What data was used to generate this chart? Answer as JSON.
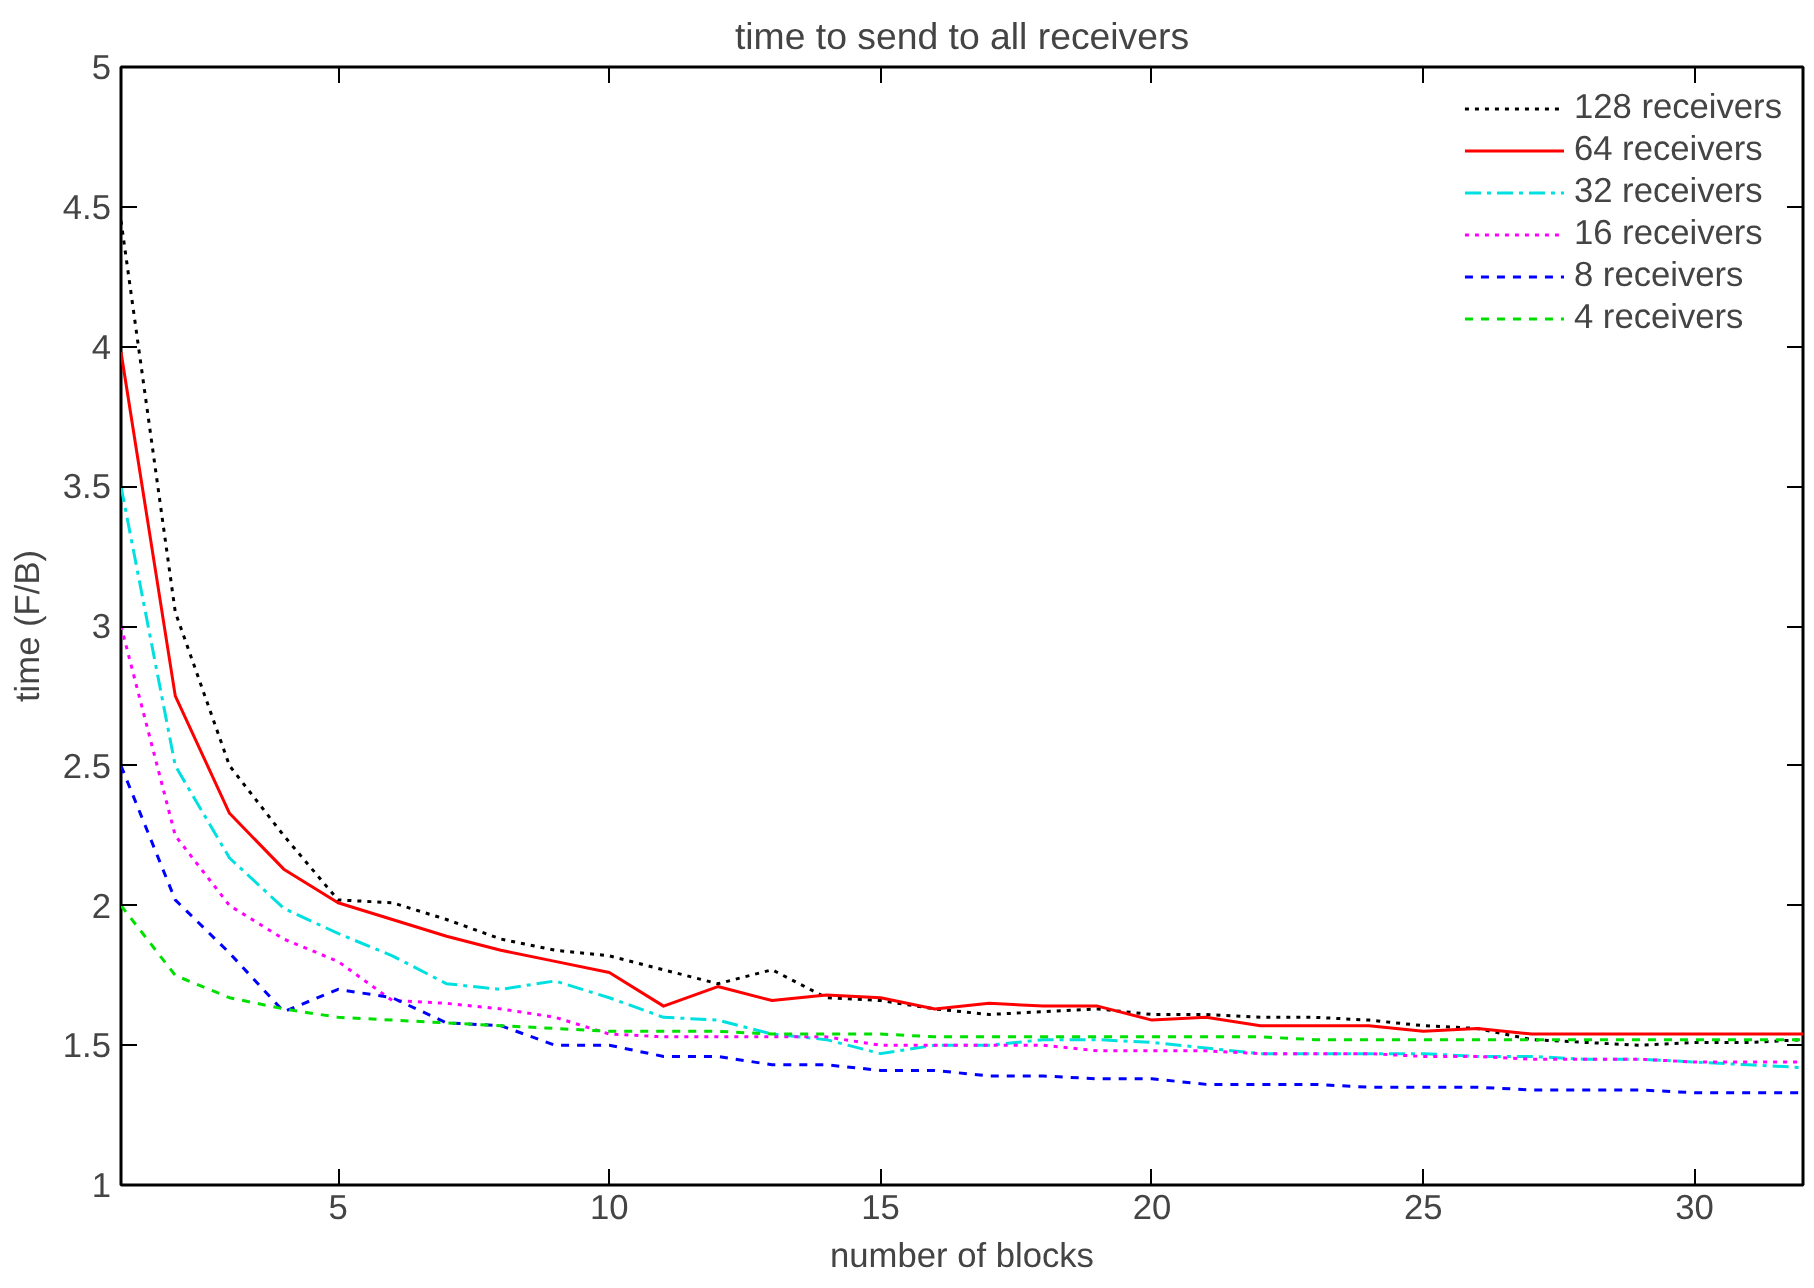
{
  "chart_data": {
    "type": "line",
    "title": "time to send to all receivers",
    "xlabel": "number of blocks",
    "ylabel": "time (F/B)",
    "x": [
      1,
      2,
      3,
      4,
      5,
      6,
      7,
      8,
      9,
      10,
      11,
      12,
      13,
      14,
      15,
      16,
      17,
      18,
      19,
      20,
      21,
      22,
      23,
      24,
      25,
      26,
      27,
      28,
      29,
      30,
      31,
      32
    ],
    "xlim": [
      1,
      32
    ],
    "ylim": [
      1,
      5
    ],
    "xticks": [
      5,
      10,
      15,
      20,
      25,
      30
    ],
    "yticks": [
      1,
      1.5,
      2,
      2.5,
      3,
      3.5,
      4,
      4.5,
      5
    ],
    "grid": false,
    "legend": "top right",
    "marker": "none",
    "series": [
      {
        "name": "128 receivers",
        "color": "#000000",
        "line_style": "dotted",
        "values": [
          4.45,
          3.05,
          2.5,
          2.25,
          2.02,
          2.01,
          1.95,
          1.88,
          1.84,
          1.82,
          1.77,
          1.72,
          1.77,
          1.67,
          1.66,
          1.63,
          1.61,
          1.62,
          1.63,
          1.61,
          1.61,
          1.6,
          1.6,
          1.59,
          1.57,
          1.56,
          1.52,
          1.51,
          1.5,
          1.51,
          1.51,
          1.52
        ]
      },
      {
        "name": "64 receivers",
        "color": "#ff0000",
        "line_style": "solid",
        "values": [
          3.98,
          2.75,
          2.33,
          2.13,
          2.01,
          1.95,
          1.89,
          1.84,
          1.8,
          1.76,
          1.64,
          1.71,
          1.66,
          1.68,
          1.67,
          1.63,
          1.65,
          1.64,
          1.64,
          1.59,
          1.6,
          1.57,
          1.57,
          1.57,
          1.55,
          1.56,
          1.54,
          1.54,
          1.54,
          1.54,
          1.54,
          1.54
        ]
      },
      {
        "name": "32 receivers",
        "color": "#00e0e0",
        "line_style": "dashdot",
        "values": [
          3.5,
          2.5,
          2.17,
          1.99,
          1.9,
          1.82,
          1.72,
          1.7,
          1.73,
          1.67,
          1.6,
          1.59,
          1.54,
          1.52,
          1.47,
          1.5,
          1.5,
          1.52,
          1.52,
          1.51,
          1.49,
          1.47,
          1.47,
          1.47,
          1.47,
          1.46,
          1.46,
          1.45,
          1.45,
          1.44,
          1.43,
          1.42
        ]
      },
      {
        "name": "16 receivers",
        "color": "#ff00ff",
        "line_style": "dotted",
        "values": [
          3.0,
          2.25,
          2.0,
          1.88,
          1.8,
          1.66,
          1.65,
          1.63,
          1.6,
          1.54,
          1.53,
          1.53,
          1.53,
          1.53,
          1.5,
          1.5,
          1.5,
          1.5,
          1.48,
          1.48,
          1.48,
          1.47,
          1.47,
          1.47,
          1.46,
          1.46,
          1.45,
          1.45,
          1.45,
          1.44,
          1.44,
          1.44
        ]
      },
      {
        "name": "8 receivers",
        "color": "#0000ff",
        "line_style": "dashed",
        "values": [
          2.5,
          2.02,
          1.83,
          1.62,
          1.7,
          1.67,
          1.58,
          1.57,
          1.5,
          1.5,
          1.46,
          1.46,
          1.43,
          1.43,
          1.41,
          1.41,
          1.39,
          1.39,
          1.38,
          1.38,
          1.36,
          1.36,
          1.36,
          1.35,
          1.35,
          1.35,
          1.34,
          1.34,
          1.34,
          1.33,
          1.33,
          1.33
        ]
      },
      {
        "name": "4 receivers",
        "color": "#00e000",
        "line_style": "dashed",
        "values": [
          2.0,
          1.75,
          1.67,
          1.63,
          1.6,
          1.59,
          1.58,
          1.57,
          1.56,
          1.55,
          1.55,
          1.55,
          1.54,
          1.54,
          1.54,
          1.53,
          1.53,
          1.53,
          1.53,
          1.53,
          1.53,
          1.53,
          1.52,
          1.52,
          1.52,
          1.52,
          1.52,
          1.52,
          1.52,
          1.52,
          1.52,
          1.52
        ]
      }
    ]
  }
}
